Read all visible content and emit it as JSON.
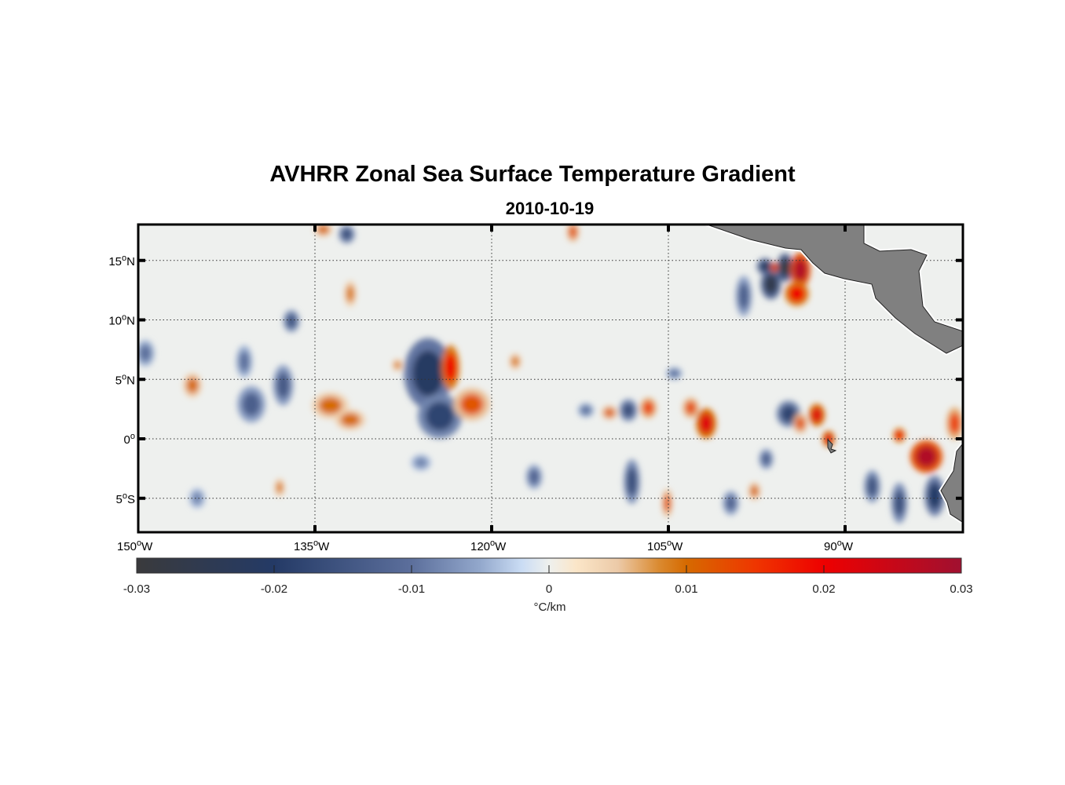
{
  "title": "AVHRR Zonal Sea Surface Temperature Gradient",
  "date": "2010-10-19",
  "map": {
    "lon_range": [
      -150,
      -80
    ],
    "lat_range": [
      -8,
      18
    ],
    "lon_ticks": [
      {
        "value": -150,
        "label": "150",
        "suffix": "W"
      },
      {
        "value": -135,
        "label": "135",
        "suffix": "W"
      },
      {
        "value": -120,
        "label": "120",
        "suffix": "W"
      },
      {
        "value": -105,
        "label": "105",
        "suffix": "W"
      },
      {
        "value": -90,
        "label": "90",
        "suffix": "W"
      }
    ],
    "lat_ticks": [
      {
        "value": 15,
        "label": "15",
        "suffix": "N"
      },
      {
        "value": 10,
        "label": "10",
        "suffix": "N"
      },
      {
        "value": 5,
        "label": "5",
        "suffix": "N"
      },
      {
        "value": 0,
        "label": "0",
        "suffix": ""
      },
      {
        "value": -5,
        "label": "5",
        "suffix": "S"
      }
    ],
    "degree_symbol": "o",
    "land_color": "#808080",
    "background_value": 0
  },
  "colorbar": {
    "range": [
      -0.03,
      0.03
    ],
    "ticks": [
      "-0.03",
      "-0.02",
      "-0.01",
      "0",
      "0.01",
      "0.02",
      "0.03"
    ],
    "tick_values": [
      -0.03,
      -0.02,
      -0.01,
      0,
      0.01,
      0.02,
      0.03
    ],
    "unit_label": "°C/km",
    "stops": [
      [
        -0.03,
        "#3a3a3c"
      ],
      [
        -0.02,
        "#243a66"
      ],
      [
        -0.01,
        "#5c6f9c"
      ],
      [
        -0.005,
        "#93a8cc"
      ],
      [
        -0.002,
        "#cadcf4"
      ],
      [
        0,
        "#eef0ee"
      ],
      [
        0.002,
        "#fbe6c8"
      ],
      [
        0.005,
        "#eccaa8"
      ],
      [
        0.008,
        "#da8a30"
      ],
      [
        0.01,
        "#d66a00"
      ],
      [
        0.015,
        "#ef3600"
      ],
      [
        0.02,
        "#ee0000"
      ],
      [
        0.03,
        "#a01030"
      ]
    ]
  },
  "chart_data": {
    "type": "heatmap",
    "title": "AVHRR Zonal Sea Surface Temperature Gradient",
    "subtitle": "2010-10-19",
    "units": "°C/km",
    "features": [
      {
        "lon": -125.4,
        "lat": 5.5,
        "value": -0.021,
        "span_lon": 2.4,
        "span_lat": 3.5
      },
      {
        "lon": -124.4,
        "lat": 1.9,
        "value": -0.018,
        "span_lon": 2.2,
        "span_lat": 2.2
      },
      {
        "lon": -123.5,
        "lat": 6.0,
        "value": 0.02,
        "span_lon": 0.9,
        "span_lat": 2.2
      },
      {
        "lon": -121.7,
        "lat": 2.9,
        "value": 0.012,
        "span_lon": 1.8,
        "span_lat": 1.6
      },
      {
        "lon": -133.7,
        "lat": 2.8,
        "value": 0.01,
        "span_lon": 1.8,
        "span_lat": 1.3
      },
      {
        "lon": -132.0,
        "lat": 1.6,
        "value": 0.01,
        "span_lon": 1.5,
        "span_lat": 1.0
      },
      {
        "lon": -137.7,
        "lat": 4.5,
        "value": -0.014,
        "span_lon": 1.0,
        "span_lat": 2.0
      },
      {
        "lon": -140.4,
        "lat": 2.9,
        "value": -0.013,
        "span_lon": 1.4,
        "span_lat": 1.8
      },
      {
        "lon": -141.0,
        "lat": 6.5,
        "value": -0.01,
        "span_lon": 0.8,
        "span_lat": 1.6
      },
      {
        "lon": -145.4,
        "lat": 4.5,
        "value": 0.01,
        "span_lon": 0.9,
        "span_lat": 1.2
      },
      {
        "lon": -149.4,
        "lat": 7.2,
        "value": -0.01,
        "span_lon": 0.9,
        "span_lat": 1.3
      },
      {
        "lon": -137.0,
        "lat": 9.9,
        "value": -0.015,
        "span_lon": 0.8,
        "span_lat": 1.1
      },
      {
        "lon": -132.0,
        "lat": 12.2,
        "value": 0.009,
        "span_lon": 0.6,
        "span_lat": 1.3
      },
      {
        "lon": -134.3,
        "lat": 17.6,
        "value": 0.01,
        "span_lon": 0.9,
        "span_lat": 0.7
      },
      {
        "lon": -132.3,
        "lat": 17.2,
        "value": -0.016,
        "span_lon": 0.8,
        "span_lat": 0.9
      },
      {
        "lon": -113.1,
        "lat": 17.4,
        "value": 0.012,
        "span_lon": 0.6,
        "span_lat": 1.0
      },
      {
        "lon": -98.6,
        "lat": 12.0,
        "value": -0.013,
        "span_lon": 0.8,
        "span_lat": 2.0
      },
      {
        "lon": -96.3,
        "lat": 13.0,
        "value": -0.026,
        "span_lon": 1.0,
        "span_lat": 1.5
      },
      {
        "lon": -96.8,
        "lat": 14.5,
        "value": -0.022,
        "span_lon": 0.8,
        "span_lat": 0.8
      },
      {
        "lon": -95.1,
        "lat": 14.4,
        "value": -0.028,
        "span_lon": 0.8,
        "span_lat": 1.4
      },
      {
        "lon": -96.0,
        "lat": 14.4,
        "value": 0.022,
        "span_lon": 0.4,
        "span_lat": 0.5
      },
      {
        "lon": -93.8,
        "lat": 14.2,
        "value": 0.028,
        "span_lon": 1.0,
        "span_lat": 1.7
      },
      {
        "lon": -94.1,
        "lat": 12.2,
        "value": 0.02,
        "span_lon": 1.2,
        "span_lat": 1.2
      },
      {
        "lon": -94.8,
        "lat": 2.1,
        "value": -0.018,
        "span_lon": 1.2,
        "span_lat": 1.3
      },
      {
        "lon": -92.4,
        "lat": 2.0,
        "value": 0.022,
        "span_lon": 0.8,
        "span_lat": 1.1
      },
      {
        "lon": -93.8,
        "lat": 1.3,
        "value": 0.012,
        "span_lon": 0.7,
        "span_lat": 1.0
      },
      {
        "lon": -91.4,
        "lat": 0.0,
        "value": 0.022,
        "span_lon": 0.6,
        "span_lat": 0.8
      },
      {
        "lon": -101.8,
        "lat": 1.3,
        "value": 0.022,
        "span_lon": 1.0,
        "span_lat": 1.5
      },
      {
        "lon": -103.1,
        "lat": 2.6,
        "value": 0.013,
        "span_lon": 0.8,
        "span_lat": 1.0
      },
      {
        "lon": -106.7,
        "lat": 2.6,
        "value": 0.014,
        "span_lon": 0.8,
        "span_lat": 1.0
      },
      {
        "lon": -108.4,
        "lat": 2.4,
        "value": -0.016,
        "span_lon": 0.9,
        "span_lat": 1.1
      },
      {
        "lon": -110.0,
        "lat": 2.2,
        "value": 0.011,
        "span_lon": 0.8,
        "span_lat": 0.7
      },
      {
        "lon": -112.0,
        "lat": 2.4,
        "value": -0.01,
        "span_lon": 0.8,
        "span_lat": 0.7
      },
      {
        "lon": -104.5,
        "lat": 5.5,
        "value": -0.01,
        "span_lon": 0.8,
        "span_lat": 0.6
      },
      {
        "lon": -83.1,
        "lat": -1.5,
        "value": 0.028,
        "span_lon": 1.6,
        "span_lat": 1.6
      },
      {
        "lon": -85.4,
        "lat": 0.3,
        "value": 0.02,
        "span_lon": 0.6,
        "span_lat": 0.7
      },
      {
        "lon": -80.7,
        "lat": 1.3,
        "value": 0.014,
        "span_lon": 0.8,
        "span_lat": 1.6
      },
      {
        "lon": -82.4,
        "lat": -4.8,
        "value": -0.02,
        "span_lon": 1.0,
        "span_lat": 2.0
      },
      {
        "lon": -85.4,
        "lat": -5.4,
        "value": -0.016,
        "span_lon": 0.8,
        "span_lat": 2.0
      },
      {
        "lon": -87.7,
        "lat": -4.0,
        "value": -0.015,
        "span_lon": 0.8,
        "span_lat": 1.6
      },
      {
        "lon": -108.1,
        "lat": -3.6,
        "value": -0.016,
        "span_lon": 0.8,
        "span_lat": 2.2
      },
      {
        "lon": -105.1,
        "lat": -5.4,
        "value": 0.012,
        "span_lon": 0.5,
        "span_lat": 1.4
      },
      {
        "lon": -97.7,
        "lat": -4.4,
        "value": 0.01,
        "span_lon": 0.6,
        "span_lat": 0.9
      },
      {
        "lon": -138.0,
        "lat": -4.1,
        "value": 0.009,
        "span_lon": 0.5,
        "span_lat": 0.9
      },
      {
        "lon": -116.4,
        "lat": -3.2,
        "value": -0.012,
        "span_lon": 0.8,
        "span_lat": 1.2
      },
      {
        "lon": -99.7,
        "lat": -5.4,
        "value": -0.012,
        "span_lon": 0.8,
        "span_lat": 1.2
      },
      {
        "lon": -96.7,
        "lat": -1.7,
        "value": -0.013,
        "span_lon": 0.7,
        "span_lat": 1.0
      },
      {
        "lon": -145.0,
        "lat": -5.0,
        "value": -0.008,
        "span_lon": 0.8,
        "span_lat": 1.0
      },
      {
        "lon": -126.0,
        "lat": -2.0,
        "value": -0.008,
        "span_lon": 1.0,
        "span_lat": 0.8
      },
      {
        "lon": -118.0,
        "lat": 6.5,
        "value": 0.009,
        "span_lon": 0.6,
        "span_lat": 0.8
      },
      {
        "lon": -128.0,
        "lat": 6.2,
        "value": 0.009,
        "span_lon": 0.5,
        "span_lat": 0.6
      }
    ]
  }
}
